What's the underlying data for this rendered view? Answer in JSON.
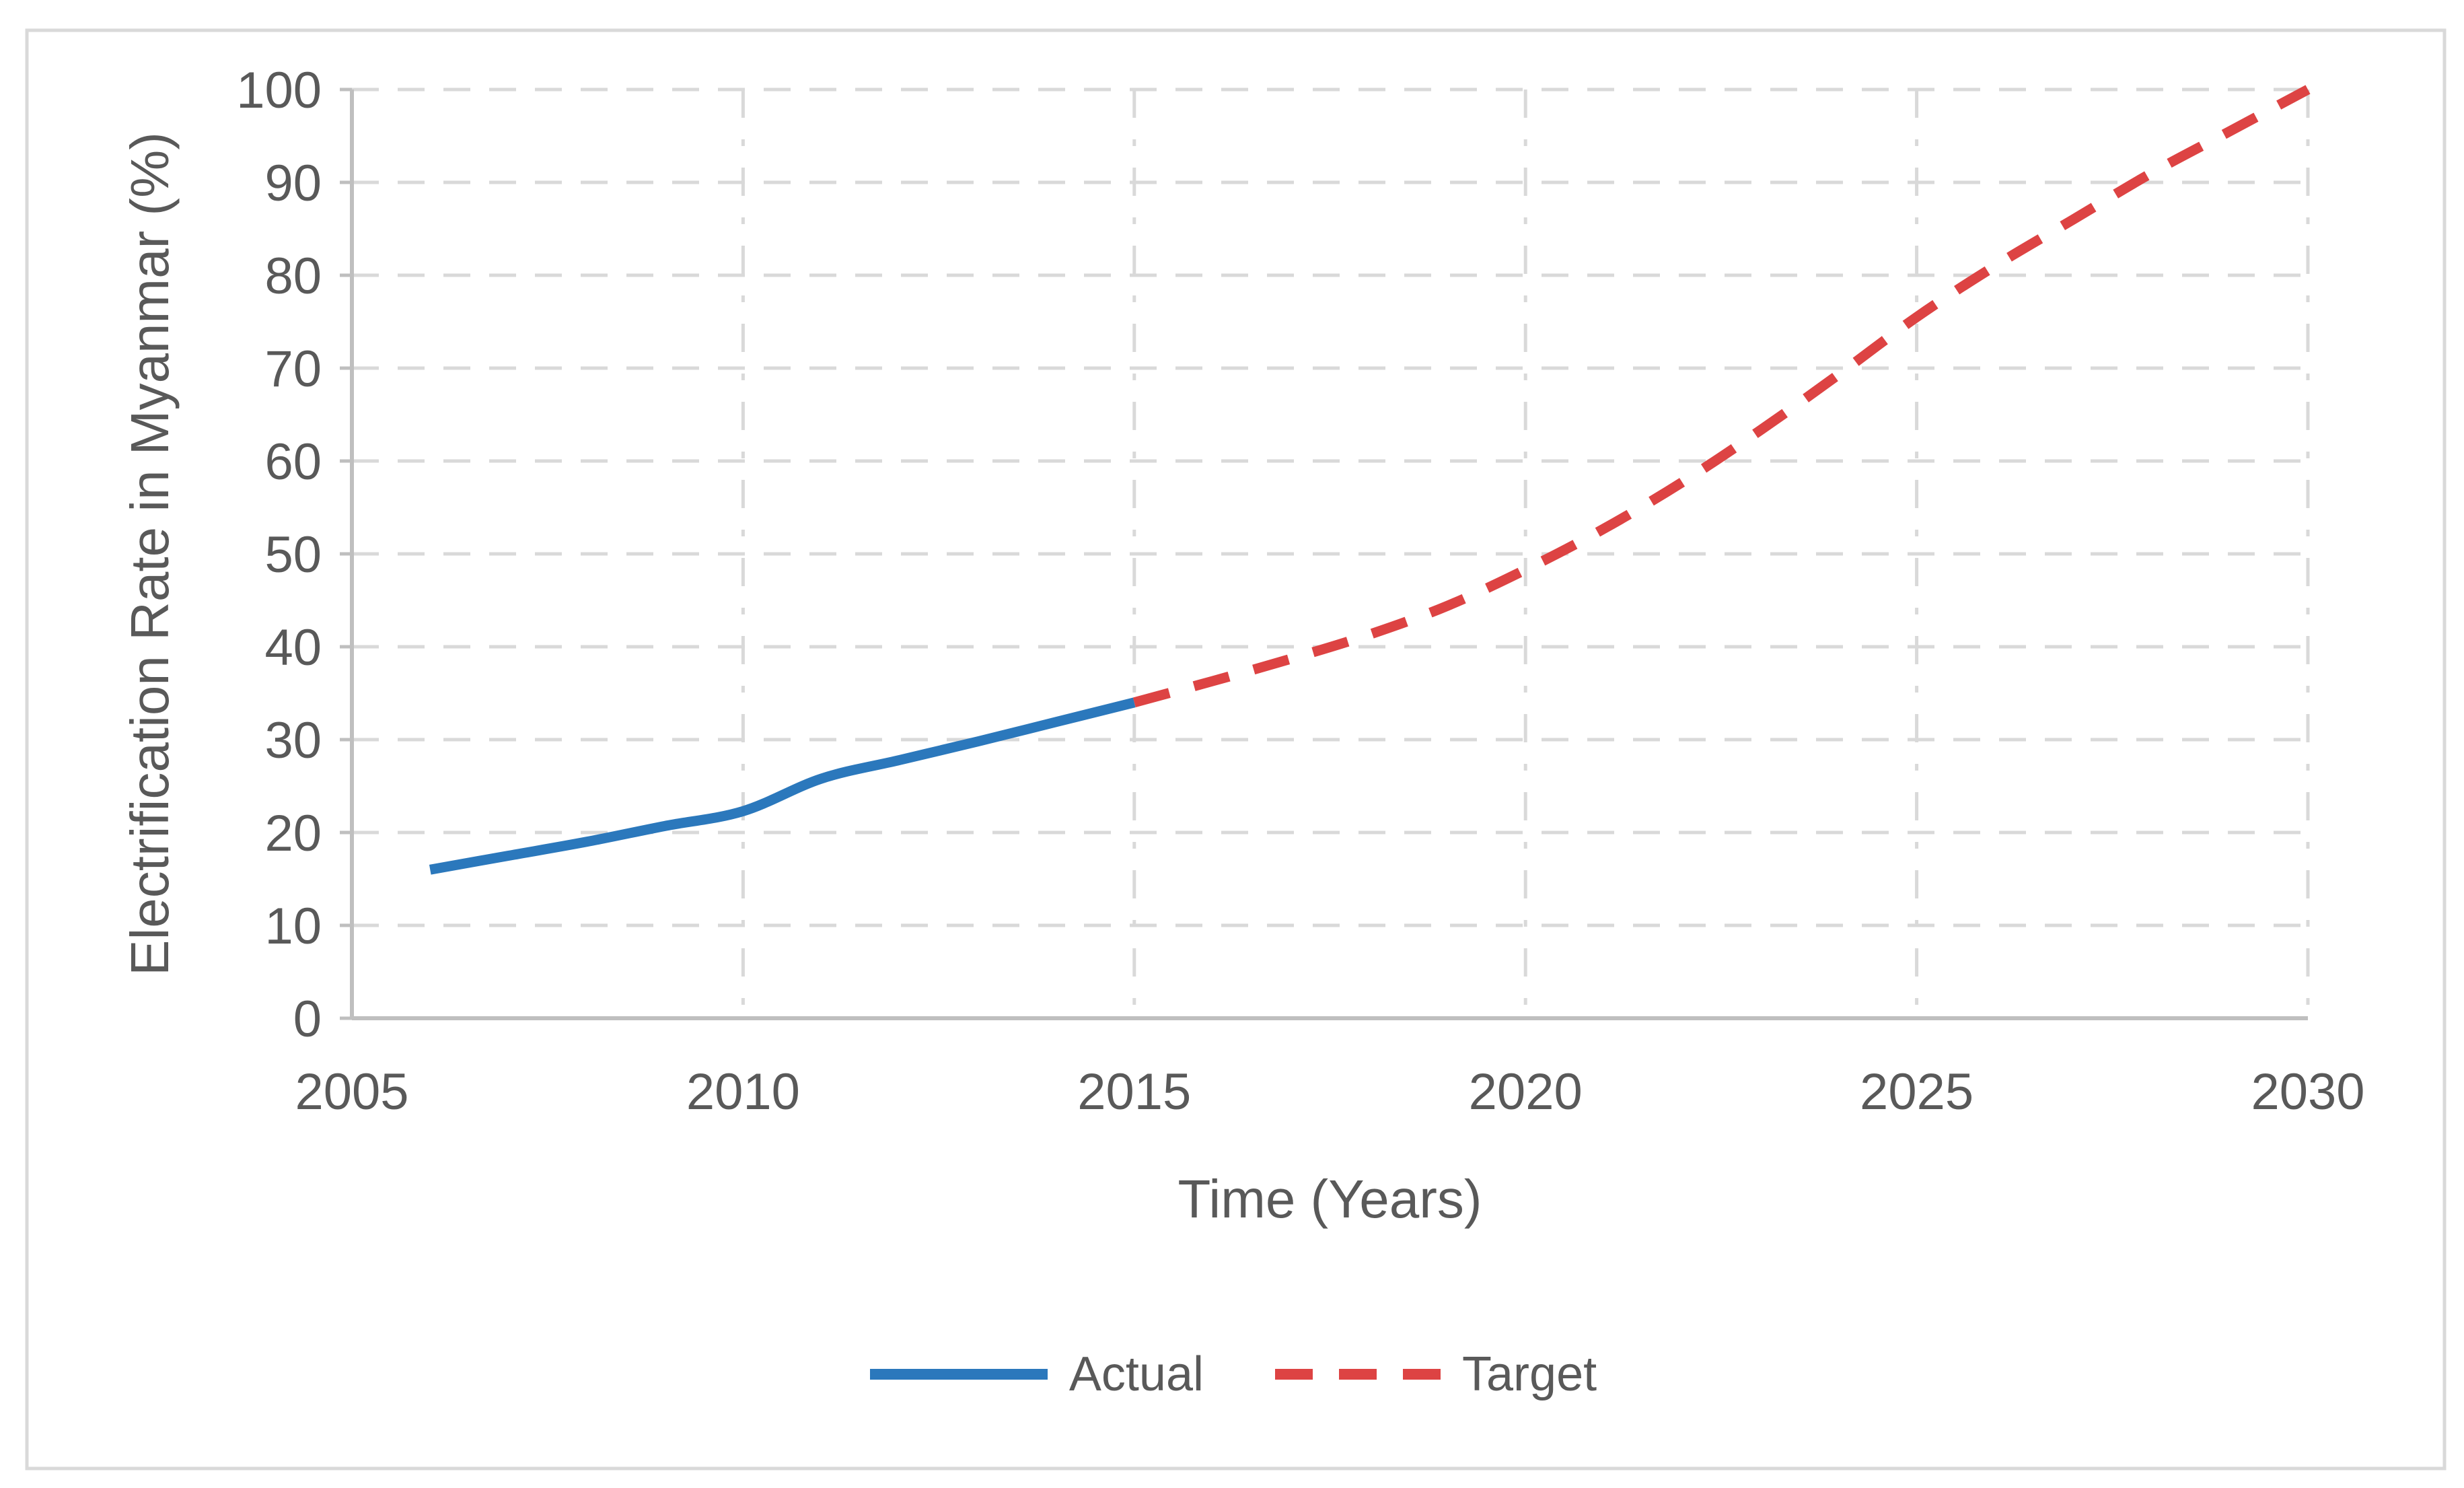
{
  "figure": {
    "background": "#FFFFFF",
    "border_color": "#D9D9D9"
  },
  "axes": {
    "tick_color": "#595959",
    "axis_line_color": "#BFBFBF",
    "grid_color": "#D9D9D9"
  },
  "chart_data": {
    "type": "line",
    "title": "",
    "xlabel": "Time (Years)",
    "ylabel": "Electrification Rate in Myanmar (%)",
    "xlim": [
      2005,
      2030
    ],
    "ylim": [
      0,
      100
    ],
    "x_ticks": [
      2005,
      2010,
      2015,
      2020,
      2025,
      2030
    ],
    "y_ticks": [
      0,
      10,
      20,
      30,
      40,
      50,
      60,
      70,
      80,
      90,
      100
    ],
    "grid": "dashed",
    "legend_position": "bottom",
    "series": [
      {
        "name": "Actual",
        "color": "#2B78BC",
        "style": "solid",
        "x": [
          2006,
          2007,
          2008,
          2009,
          2010,
          2011,
          2012,
          2013,
          2014,
          2015
        ],
        "values": [
          16,
          17.5,
          19,
          20.7,
          22.3,
          25.8,
          27.8,
          29.8,
          31.9,
          34
        ]
      },
      {
        "name": "Target",
        "color": "#DD4343",
        "style": "dashed",
        "x": [
          2015,
          2016,
          2017,
          2018,
          2019,
          2020,
          2021,
          2022,
          2023,
          2024,
          2025,
          2026,
          2027,
          2028,
          2029,
          2030
        ],
        "values": [
          34,
          36.3,
          38.7,
          41.3,
          44.4,
          48.3,
          52.7,
          57.7,
          63.3,
          69.3,
          75.5,
          81,
          86,
          91,
          95.5,
          100
        ]
      }
    ]
  }
}
